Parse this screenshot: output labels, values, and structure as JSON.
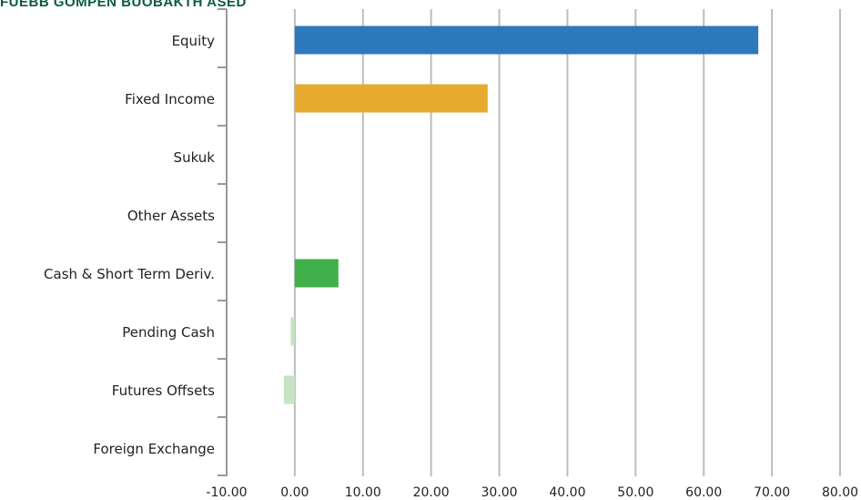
{
  "chart_data": {
    "type": "bar",
    "orientation": "horizontal",
    "title": "FUEBB GOMPEN BUOBAKTH ASED",
    "categories": [
      "Equity",
      "Fixed Income",
      "Sukuk",
      "Other Assets",
      "Cash & Short Term Deriv.",
      "Pending Cash",
      "Futures Offsets",
      "Foreign Exchange"
    ],
    "values": [
      68.0,
      28.3,
      0,
      0,
      6.4,
      -0.6,
      -1.6,
      0
    ],
    "colors": [
      "#2e78bc",
      "#e6ab2e",
      "#2e78bc",
      "#2e78bc",
      "#3fb04a",
      "#c6e3c4",
      "#c6e3c4",
      "#c6e3c4"
    ],
    "xlim": [
      -10,
      80
    ],
    "xticks": [
      "-10.00",
      "0.00",
      "10.00",
      "20.00",
      "30.00",
      "40.00",
      "50.00",
      "60.00",
      "70.00",
      "80.00"
    ],
    "grid": true,
    "xlabel": "",
    "ylabel": ""
  }
}
